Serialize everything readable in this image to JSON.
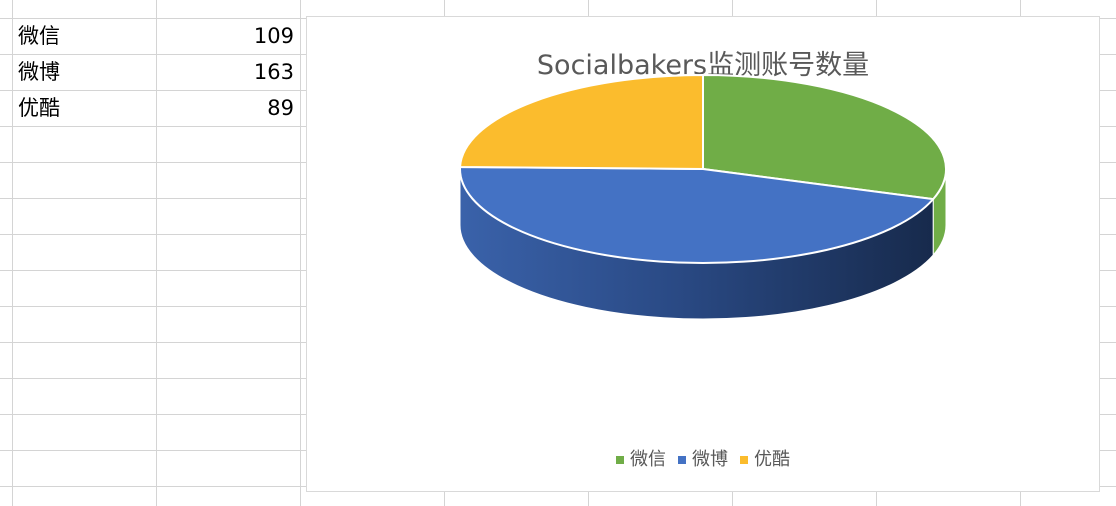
{
  "sheet": {
    "rows": [
      {
        "name": "微信",
        "value": "109"
      },
      {
        "name": "微博",
        "value": "163"
      },
      {
        "name": "优酷",
        "value": "89"
      }
    ]
  },
  "chart_data": {
    "type": "pie",
    "title": "Socialbakers监测账号数量",
    "categories": [
      "微信",
      "微博",
      "优酷"
    ],
    "values": [
      109,
      163,
      89
    ],
    "colors": [
      "#70AD47",
      "#4472C4",
      "#FBBC2D"
    ],
    "legend": "bottom",
    "style": "3d"
  }
}
